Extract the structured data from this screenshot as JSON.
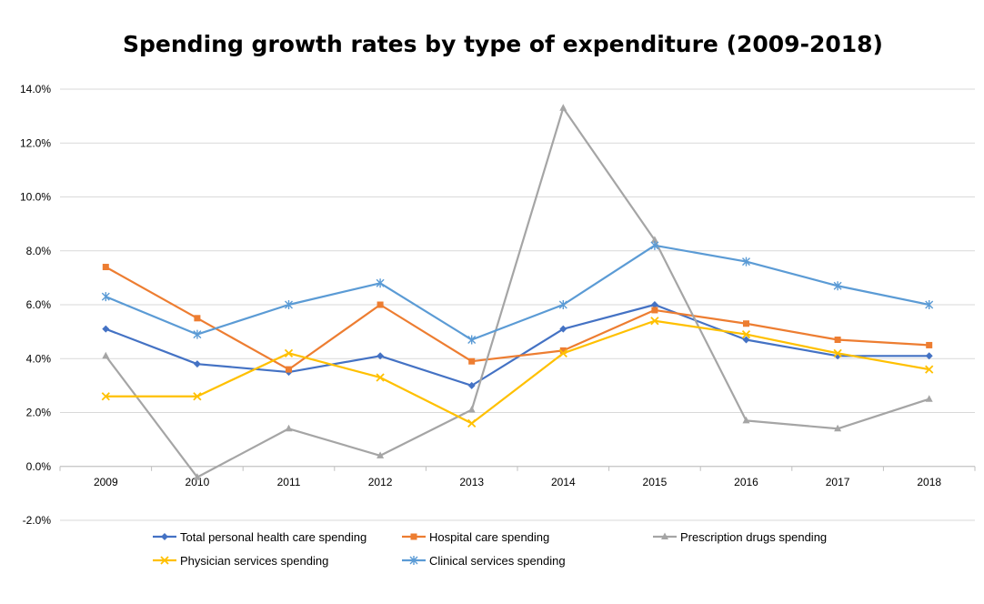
{
  "chart_data": {
    "type": "line",
    "title": "Spending growth rates by type of expenditure (2009-2018)",
    "xlabel": "",
    "ylabel": "",
    "categories": [
      "2009",
      "2010",
      "2011",
      "2012",
      "2013",
      "2014",
      "2015",
      "2016",
      "2017",
      "2018"
    ],
    "ylim": [
      -2.0,
      14.0
    ],
    "yticks": [
      -2.0,
      0.0,
      2.0,
      4.0,
      6.0,
      8.0,
      10.0,
      12.0,
      14.0
    ],
    "ytick_labels": [
      "-2.0%",
      "0.0%",
      "2.0%",
      "4.0%",
      "6.0%",
      "8.0%",
      "10.0%",
      "12.0%",
      "14.0%"
    ],
    "grid": true,
    "legend_position": "bottom",
    "series": [
      {
        "name": "Total personal health care spending",
        "color": "#4472C4",
        "marker": "diamond",
        "values": [
          5.1,
          3.8,
          3.5,
          4.1,
          3.0,
          5.1,
          6.0,
          4.7,
          4.1,
          4.1
        ]
      },
      {
        "name": "Hospital care spending",
        "color": "#ED7D31",
        "marker": "square",
        "values": [
          7.4,
          5.5,
          3.6,
          6.0,
          3.9,
          4.3,
          5.8,
          5.3,
          4.7,
          4.5
        ]
      },
      {
        "name": "Prescription drugs spending",
        "color": "#A5A5A5",
        "marker": "triangle",
        "values": [
          4.1,
          -0.4,
          1.4,
          0.4,
          2.1,
          13.3,
          8.4,
          1.7,
          1.4,
          2.5
        ]
      },
      {
        "name": "Physician services spending",
        "color": "#FFC000",
        "marker": "x",
        "values": [
          2.6,
          2.6,
          4.2,
          3.3,
          1.6,
          4.2,
          5.4,
          4.9,
          4.2,
          3.6
        ]
      },
      {
        "name": "Clinical services spending",
        "color": "#5B9BD5",
        "marker": "star",
        "values": [
          6.3,
          4.9,
          6.0,
          6.8,
          4.7,
          6.0,
          8.2,
          7.6,
          6.7,
          6.0
        ]
      }
    ]
  }
}
